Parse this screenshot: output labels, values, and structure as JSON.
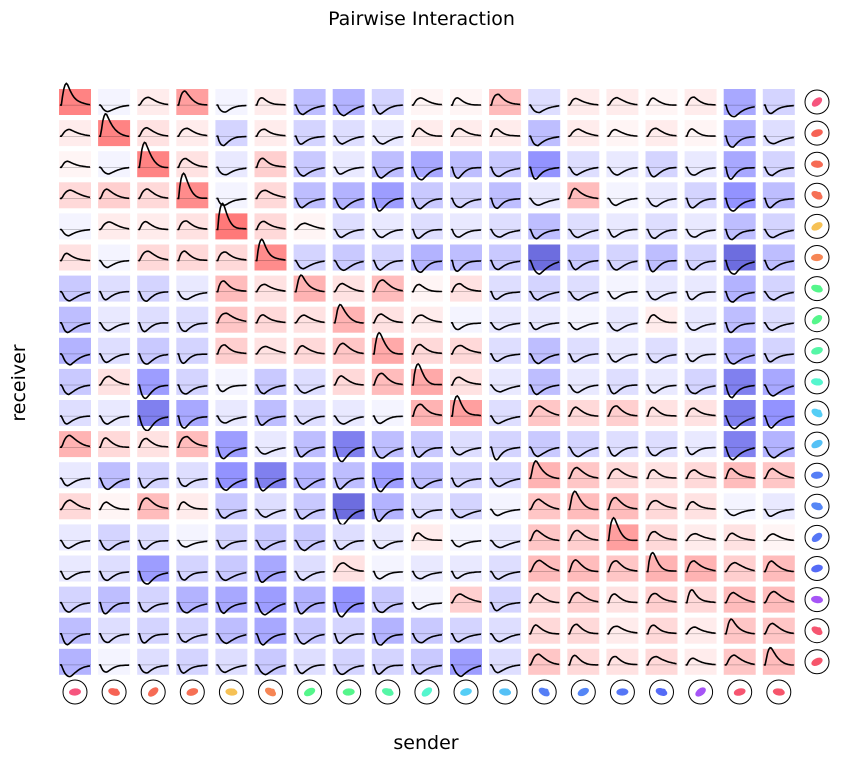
{
  "chart_data": {
    "type": "heatmap",
    "title": "Pairwise Interaction",
    "xlabel": "sender",
    "ylabel": "receiver",
    "n_rows": 19,
    "n_cols": 19,
    "color_scale": {
      "negative": "#0000ff",
      "positive": "#ff0000",
      "range": [
        -1,
        1
      ]
    },
    "unit_hues": [
      345,
      5,
      8,
      10,
      40,
      18,
      140,
      140,
      150,
      165,
      195,
      200,
      225,
      222,
      228,
      232,
      270,
      350,
      352
    ],
    "strengths": [
      [
        0.65,
        -0.05,
        0.1,
        0.5,
        -0.05,
        0.1,
        -0.3,
        -0.35,
        -0.2,
        0.05,
        0.05,
        0.35,
        -0.15,
        0.1,
        0.1,
        0.05,
        0.1,
        -0.4,
        -0.2
      ],
      [
        0.1,
        0.65,
        0.15,
        0.1,
        -0.2,
        0.1,
        -0.2,
        -0.15,
        -0.1,
        0.1,
        0.1,
        0.1,
        -0.3,
        0.1,
        0.05,
        0.1,
        0.05,
        -0.35,
        -0.15
      ],
      [
        0.05,
        -0.05,
        0.65,
        0.15,
        -0.1,
        0.25,
        -0.25,
        -0.1,
        -0.3,
        -0.4,
        -0.3,
        -0.25,
        -0.5,
        -0.15,
        -0.1,
        -0.2,
        -0.1,
        -0.4,
        -0.2
      ],
      [
        0.2,
        0.25,
        0.2,
        0.6,
        -0.05,
        0.2,
        -0.3,
        -0.35,
        -0.45,
        -0.25,
        -0.2,
        -0.3,
        -0.1,
        0.35,
        -0.05,
        -0.1,
        -0.2,
        -0.5,
        -0.3
      ],
      [
        -0.05,
        0.1,
        0.1,
        0.15,
        0.7,
        0.2,
        0.05,
        -0.15,
        -0.1,
        -0.15,
        -0.1,
        -0.15,
        -0.3,
        -0.15,
        -0.1,
        -0.15,
        -0.1,
        -0.3,
        -0.2
      ],
      [
        0.15,
        -0.05,
        0.2,
        0.2,
        0.2,
        0.6,
        -0.2,
        -0.25,
        -0.2,
        -0.35,
        -0.3,
        -0.25,
        -0.6,
        -0.25,
        -0.2,
        -0.3,
        -0.2,
        -0.6,
        -0.3
      ],
      [
        -0.25,
        -0.15,
        -0.2,
        -0.1,
        0.35,
        0.15,
        0.4,
        0.15,
        0.35,
        0.05,
        0.15,
        -0.15,
        -0.2,
        -0.15,
        -0.05,
        -0.1,
        -0.1,
        -0.35,
        -0.2
      ],
      [
        -0.3,
        -0.1,
        -0.15,
        -0.15,
        0.3,
        0.2,
        0.15,
        0.4,
        0.15,
        0.1,
        -0.05,
        -0.1,
        -0.1,
        -0.05,
        -0.1,
        0.1,
        -0.1,
        -0.3,
        -0.15
      ],
      [
        -0.35,
        -0.15,
        -0.25,
        -0.2,
        0.25,
        0.15,
        0.2,
        0.3,
        0.45,
        0.2,
        0.2,
        -0.15,
        -0.3,
        -0.15,
        -0.1,
        -0.15,
        -0.1,
        -0.35,
        -0.2
      ],
      [
        -0.25,
        0.15,
        -0.45,
        -0.2,
        -0.05,
        -0.25,
        -0.15,
        0.2,
        0.35,
        0.45,
        0.15,
        -0.1,
        -0.3,
        -0.1,
        -0.15,
        -0.1,
        -0.2,
        -0.55,
        -0.4
      ],
      [
        -0.15,
        -0.1,
        -0.55,
        -0.4,
        -0.1,
        -0.3,
        -0.15,
        -0.1,
        -0.05,
        0.4,
        0.5,
        -0.15,
        0.3,
        0.2,
        0.25,
        0.15,
        0.15,
        -0.55,
        -0.5
      ],
      [
        0.4,
        0.2,
        0.15,
        0.35,
        -0.45,
        -0.1,
        -0.3,
        -0.55,
        -0.3,
        -0.25,
        -0.15,
        -0.2,
        -0.25,
        -0.2,
        -0.15,
        -0.15,
        -0.1,
        -0.55,
        -0.35
      ],
      [
        -0.1,
        -0.3,
        -0.2,
        -0.15,
        -0.5,
        -0.55,
        -0.35,
        -0.3,
        -0.45,
        -0.3,
        -0.2,
        -0.2,
        0.4,
        0.3,
        0.2,
        0.15,
        0.2,
        0.35,
        0.3
      ],
      [
        0.2,
        0.05,
        0.35,
        0.1,
        -0.25,
        -0.15,
        -0.25,
        -0.6,
        -0.35,
        -0.15,
        -0.2,
        -0.05,
        0.3,
        0.35,
        0.35,
        0.2,
        0.15,
        -0.05,
        -0.1
      ],
      [
        -0.1,
        -0.2,
        -0.15,
        -0.05,
        -0.2,
        -0.25,
        -0.25,
        -0.15,
        -0.1,
        0.1,
        -0.05,
        -0.1,
        0.3,
        0.25,
        0.5,
        0.2,
        0.1,
        0.15,
        0.05
      ],
      [
        -0.1,
        -0.15,
        -0.45,
        -0.2,
        -0.25,
        -0.4,
        -0.15,
        0.15,
        -0.05,
        -0.1,
        -0.1,
        -0.15,
        0.35,
        0.35,
        0.3,
        0.4,
        0.4,
        0.25,
        0.35
      ],
      [
        -0.2,
        -0.3,
        -0.2,
        -0.35,
        -0.4,
        -0.45,
        -0.35,
        -0.5,
        -0.25,
        -0.05,
        0.25,
        -0.2,
        0.2,
        0.25,
        0.15,
        0.25,
        0.2,
        0.35,
        0.35
      ],
      [
        -0.3,
        -0.15,
        -0.2,
        -0.2,
        -0.3,
        -0.4,
        -0.25,
        -0.2,
        -0.35,
        -0.25,
        -0.2,
        -0.15,
        0.2,
        0.2,
        0.1,
        0.2,
        0.1,
        0.3,
        0.3
      ],
      [
        -0.35,
        -0.05,
        -0.15,
        -0.2,
        -0.15,
        -0.25,
        -0.15,
        -0.2,
        -0.2,
        -0.25,
        -0.45,
        -0.15,
        0.3,
        0.2,
        0.15,
        0.2,
        0.1,
        0.3,
        0.35
      ]
    ]
  }
}
